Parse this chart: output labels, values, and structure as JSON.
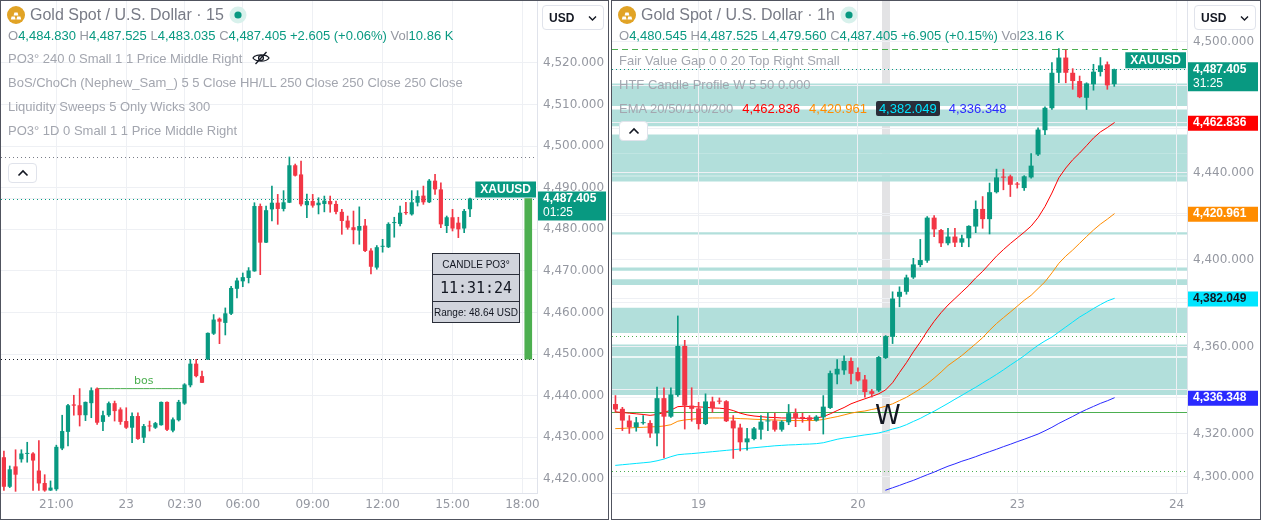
{
  "chart_data": [
    {
      "type": "candlestick",
      "title": "Gold Spot / U.S. Dollar · 15",
      "subtitle": "O4,484.830 H4,487.525 L4,483.035 C4,487.405 +2.605 (+0.06%) Vol10.86 K",
      "categories": [
        null,
        null,
        null,
        null,
        null,
        null,
        null,
        null,
        null,
        "21:00",
        null,
        null,
        null,
        null,
        null,
        null,
        null,
        null,
        null,
        null,
        null,
        "23",
        null,
        null,
        null,
        null,
        null,
        null,
        null,
        null,
        null,
        "02:30",
        null,
        null,
        null,
        null,
        null,
        null,
        null,
        null,
        null,
        "06:00",
        null,
        null,
        null,
        null,
        null,
        null,
        null,
        null,
        null,
        null,
        null,
        "09:00",
        null,
        null,
        null,
        null,
        null,
        null,
        null,
        null,
        null,
        null,
        null,
        "12:00",
        null,
        null,
        null,
        null,
        null,
        null,
        null,
        null,
        null,
        null,
        null,
        "15:00",
        null,
        null,
        null,
        null,
        null,
        null,
        null,
        null,
        null,
        null,
        null,
        "18:00",
        null,
        null
      ],
      "ohlc": [
        [
          4425.2,
          4426.7,
          4417.2,
          4418.1
        ],
        [
          4418.1,
          4423.1,
          4417.9,
          4422.3
        ],
        [
          4423,
          4427,
          4417,
          4421
        ],
        [
          4424.7,
          4427,
          4424,
          4426.1
        ],
        [
          4426,
          4428.8,
          4424,
          4426.2
        ],
        [
          4426.1,
          4426.3,
          4417.2,
          4424.4
        ],
        [
          4422,
          4429.2,
          4417.2,
          4418.9
        ],
        [
          4419,
          4421,
          4417,
          4417.2
        ],
        [
          4417.2,
          4419.5,
          4417.2,
          4417.9
        ],
        [
          4417.5,
          4428.1,
          4417.2,
          4427.7
        ],
        [
          4427.3,
          4435.3,
          4427,
          4431.5
        ],
        [
          4431.3,
          4437.9,
          4427.9,
          4437.7
        ],
        [
          4437.9,
          4440.1,
          4435.3,
          4437.6
        ],
        [
          4437.7,
          4441.7,
          4432.7,
          4435.3
        ],
        [
          4435.3,
          4438.5,
          4434,
          4438.5
        ],
        [
          4438.2,
          4441.9,
          4434.7,
          4441.3
        ],
        [
          4441.7,
          4441.9,
          4433.1,
          4433.5
        ],
        [
          4433.7,
          4436.3,
          4431.6,
          4435.3
        ],
        [
          4435.3,
          4438.5,
          4435,
          4438.2
        ],
        [
          4438.2,
          4438.7,
          4433.9,
          4436.3
        ],
        [
          4436.7,
          4437.1,
          4433.1,
          4433.7
        ],
        [
          4433.9,
          4437.1,
          4432.1,
          4432.3
        ],
        [
          4432.3,
          4435.9,
          4428.7,
          4435.1
        ],
        [
          4435.1,
          4435.9,
          4429.5,
          4429.6
        ],
        [
          4429.9,
          4433.1,
          4428.7,
          4432.7
        ],
        [
          4432.8,
          4433.9,
          4431.5,
          4432.6
        ],
        [
          4432.3,
          4433.6,
          4432.1,
          4433.4
        ],
        [
          4432.9,
          4438.5,
          4432.9,
          4438.5
        ],
        [
          4438.5,
          4438.5,
          4431.6,
          4431.8
        ],
        [
          4431.6,
          4434.7,
          4431.3,
          4434.3
        ],
        [
          4434.1,
          4438.9,
          4433.9,
          4438.5
        ],
        [
          4438.1,
          4442.9,
          4437.9,
          4442.7
        ],
        [
          4442.5,
          4448.7,
          4442.1,
          4447.7
        ],
        [
          4447.7,
          4448.7,
          4444.5,
          4444.7
        ],
        [
          4444.7,
          4445.9,
          4443.1,
          4443.1
        ],
        [
          4448.7,
          4455.1,
          4448.7,
          4455.1
        ],
        [
          4454.9,
          4459.5,
          4454.7,
          4458.3
        ],
        [
          4458.5,
          4458.7,
          4452.5,
          4457.8
        ],
        [
          4457.5,
          4461.1,
          4454.6,
          4459.8
        ],
        [
          4459.7,
          4466.3,
          4459.5,
          4465.9
        ],
        [
          4465.7,
          4468.3,
          4463.5,
          4467.7
        ],
        [
          4467.5,
          4469.5,
          4466.2,
          4468.5
        ],
        [
          4468.3,
          4470.8,
          4467.1,
          4470.1
        ],
        [
          4469.9,
          4486.4,
          4469.9,
          4485.6
        ],
        [
          4485.6,
          4486.1,
          4469.1,
          4476.8
        ],
        [
          4476.8,
          4485.6,
          4476.8,
          4484.6
        ],
        [
          4484.8,
          4490.4,
          4482,
          4486.4
        ],
        [
          4486.4,
          4488.4,
          4481.2,
          4484.9
        ],
        [
          4484.9,
          4489.3,
          4484.4,
          4486.5
        ],
        [
          4486.4,
          4497.4,
          4486.4,
          4495.4
        ],
        [
          4495.4,
          4495.7,
          4492.8,
          4492.9
        ],
        [
          4493.2,
          4496.4,
          4485.6,
          4486
        ],
        [
          4485.8,
          4488.5,
          4482.8,
          4486.8
        ],
        [
          4486.8,
          4488.4,
          4485.3,
          4485.7
        ],
        [
          4485.8,
          4487.6,
          4483.7,
          4486.4
        ],
        [
          4486.1,
          4488,
          4484.2,
          4486.9
        ],
        [
          4486.8,
          4488,
          4484.1,
          4486
        ],
        [
          4486.1,
          4486.8,
          4483.7,
          4484.2
        ],
        [
          4484.2,
          4484.8,
          4478.8,
          4482
        ],
        [
          4482.1,
          4483.2,
          4480,
          4480.4
        ],
        [
          4480.5,
          4484.4,
          4476.5,
          4479.8
        ],
        [
          4479.7,
          4485.4,
          4476.4,
          4480.8
        ],
        [
          4480.9,
          4482.4,
          4474.6,
          4474.8
        ],
        [
          4474.9,
          4475.4,
          4469.3,
          4471
        ],
        [
          4470.8,
          4476.1,
          4470.4,
          4475.7
        ],
        [
          4475.8,
          4477.6,
          4474.5,
          4476
        ],
        [
          4475.7,
          4481.6,
          4475.6,
          4481.3
        ],
        [
          4481.5,
          4482.9,
          4478.1,
          4481.7
        ],
        [
          4481.3,
          4485.6,
          4480.8,
          4484
        ],
        [
          4484.1,
          4486.5,
          4483.6,
          4483.9
        ],
        [
          4483.6,
          4489.3,
          4483.4,
          4486.5
        ],
        [
          4486.4,
          4489.3,
          4485.6,
          4488
        ],
        [
          4488.1,
          4490.4,
          4486,
          4486.5
        ],
        [
          4486.5,
          4492,
          4486.4,
          4491.7
        ],
        [
          4491.7,
          4493.2,
          4488.4,
          4489.6
        ],
        [
          4489.6,
          4491.2,
          4480.4,
          4481.2
        ],
        [
          4480.8,
          4483.2,
          4479.2,
          4482.9
        ],
        [
          4482.9,
          4484.8,
          4479.6,
          4480.2
        ],
        [
          4481.6,
          4482.9,
          4478,
          4480
        ],
        [
          4480.2,
          4484.8,
          4479.2,
          4484.4
        ],
        [
          4484.83,
          4487.525,
          4483.035,
          4487.405
        ],
        null,
        null,
        null,
        null,
        null,
        null,
        null,
        null,
        null,
        null,
        null
      ],
      "colors": [
        "#f23645",
        "#089981",
        "#f23645",
        "#089981",
        "#089981",
        "#f23645",
        "#f23645",
        "#f23645",
        "#089981",
        "#089981",
        "#089981",
        "#089981",
        "#f23645",
        "#f23645",
        "#089981",
        "#089981",
        "#f23645",
        "#089981",
        "#089981",
        "#f23645",
        "#f23645",
        "#f23645",
        "#089981",
        "#f23645",
        "#089981",
        "#f23645",
        "#089981",
        "#089981",
        "#f23645",
        "#089981",
        "#089981",
        "#089981",
        "#089981",
        "#f23645",
        "#f23645",
        "#089981",
        "#089981",
        "#f23645",
        "#089981",
        "#089981",
        "#089981",
        "#089981",
        "#089981",
        "#089981",
        "#f23645",
        "#089981",
        "#089981",
        "#f23645",
        "#089981",
        "#089981",
        "#f23645",
        "#f23645",
        "#089981",
        "#f23645",
        "#089981",
        "#089981",
        "#f23645",
        "#f23645",
        "#f23645",
        "#f23645",
        "#f23645",
        "#089981",
        "#f23645",
        "#f23645",
        "#089981",
        "#089981",
        "#089981",
        "#089981",
        "#089981",
        "#f23645",
        "#089981",
        "#089981",
        "#f23645",
        "#089981",
        "#f23645",
        "#f23645",
        "#089981",
        "#f23645",
        "#f23645",
        "#089981",
        "#089981",
        null,
        null,
        null,
        null,
        null,
        null,
        null,
        null,
        null,
        null,
        null
      ],
      "series": [
        {
          "type": "line",
          "name": "bos",
          "color": "#4caf50",
          "values": [
            null,
            null,
            null,
            null,
            null,
            null,
            null,
            null,
            null,
            null,
            null,
            null,
            null,
            null,
            null,
            null,
            4441.7,
            4441.7,
            4441.7,
            4441.7,
            4441.7,
            4441.7,
            4441.7,
            4441.7,
            4441.7,
            4441.7,
            4441.7,
            4441.7,
            4441.7,
            4441.7,
            4441.7,
            4441.7,
            null,
            null,
            null,
            null,
            null,
            null,
            null,
            null,
            null,
            null,
            null,
            null,
            null,
            null,
            null,
            null,
            null,
            null,
            null,
            null,
            null,
            null,
            null,
            null,
            null,
            null,
            null,
            null,
            null,
            null,
            null,
            null,
            null,
            null,
            null,
            null,
            null,
            null,
            null,
            null,
            null,
            null,
            null,
            null,
            null,
            null,
            null,
            null,
            null,
            null,
            null,
            null,
            null,
            null,
            null,
            null,
            null,
            null,
            null,
            null
          ]
        },
        {
          "type": "bar",
          "color": "#4caf50",
          "values": [
            null,
            null,
            null,
            null,
            null,
            null,
            null,
            null,
            null,
            null,
            null,
            null,
            null,
            null,
            null,
            null,
            null,
            null,
            null,
            null,
            null,
            null,
            null,
            null,
            null,
            null,
            null,
            null,
            null,
            null,
            null,
            null,
            null,
            null,
            null,
            null,
            null,
            null,
            null,
            null,
            null,
            null,
            null,
            null,
            null,
            null,
            null,
            null,
            null,
            null,
            null,
            null,
            null,
            null,
            null,
            null,
            null,
            null,
            null,
            null,
            null,
            null,
            null,
            null,
            null,
            null,
            null,
            null,
            null,
            null,
            null,
            null,
            null,
            null,
            null,
            null,
            null,
            null,
            null,
            null,
            null,
            null,
            null,
            null,
            null,
            null,
            null,
            null,
            null,
            null,
            38.6,
            null
          ],
          "base": [
            null,
            null,
            null,
            null,
            null,
            null,
            null,
            null,
            null,
            null,
            null,
            null,
            null,
            null,
            null,
            null,
            null,
            null,
            null,
            null,
            null,
            null,
            null,
            null,
            null,
            null,
            null,
            null,
            null,
            null,
            null,
            null,
            null,
            null,
            null,
            null,
            null,
            null,
            null,
            null,
            null,
            null,
            null,
            null,
            null,
            null,
            null,
            null,
            null,
            null,
            null,
            null,
            null,
            null,
            null,
            null,
            null,
            null,
            null,
            null,
            null,
            null,
            null,
            null,
            null,
            null,
            null,
            null,
            null,
            null,
            null,
            null,
            null,
            null,
            null,
            null,
            null,
            null,
            null,
            null,
            null,
            null,
            null,
            null,
            null,
            null,
            null,
            null,
            null,
            null,
            4448.8,
            null
          ]
        }
      ],
      "ylim": [
        4416.6,
        4534.9
      ],
      "yticks": [
        {
          "value": 4420,
          "label": "4,420.000"
        },
        {
          "value": 4430,
          "label": "4,430.000"
        },
        {
          "value": 4440,
          "label": "4,440.000"
        },
        {
          "value": 4450,
          "label": "4,450.000"
        },
        {
          "value": 4460,
          "label": "4,460.000"
        },
        {
          "value": 4470,
          "label": "4,470.000"
        },
        {
          "value": 4480,
          "label": "4,480.000"
        },
        {
          "value": 4487.405,
          "label": "4,487.405"
        },
        {
          "value": 4490,
          "label": "4,490.000"
        },
        {
          "value": 4500,
          "label": "4,500.000"
        },
        {
          "value": 4510,
          "label": "4,510.000"
        },
        {
          "value": 4520,
          "label": "4,520.000"
        }
      ],
      "grid": true,
      "ref_lines": [
        {
          "axis": "y",
          "value": 4487.405,
          "color": "#089981",
          "line_style": "dotted"
        },
        {
          "axis": "y",
          "value": 4497.4,
          "color": "#787b86",
          "line_style": "dotted"
        },
        {
          "axis": "y",
          "value": 4448.8,
          "color": "#131722",
          "line_style": "dotted"
        }
      ],
      "annotations": [
        "PO3° 240 0 Small 1 1 Price Middle Right",
        "BoS/ChoCh (Nephew_Sam_) 5 5 Close HH/LL 250 Close 250 Close 250 Close",
        "Liquidity Sweeps 5 Only Wicks 300",
        "PO3° 1D 0 Small 1 1 Price Middle Right",
        "USD",
        "CANDLE PO3°",
        "11:31:24",
        "Range: 48.64 USD",
        "01:25",
        "XAUUSD"
      ]
    },
    {
      "type": "candlestick",
      "title": "Gold Spot / U.S. Dollar · 1h",
      "subtitle": "O4,480.545 H4,487.525 L4,479.560 C4,487.405 +6.905 (+0.15%) Vol23.16 K",
      "categories": [
        null,
        null,
        null,
        null,
        null,
        null,
        null,
        null,
        null,
        null,
        null,
        null,
        "19",
        null,
        null,
        null,
        null,
        null,
        null,
        null,
        null,
        null,
        null,
        null,
        null,
        null,
        null,
        null,
        null,
        null,
        null,
        null,
        null,
        null,
        null,
        "20",
        null,
        null,
        null,
        null,
        null,
        null,
        null,
        null,
        null,
        null,
        null,
        null,
        null,
        null,
        null,
        null,
        null,
        null,
        null,
        null,
        null,
        null,
        "23",
        null,
        null,
        null,
        null,
        null,
        null,
        null,
        null,
        null,
        null,
        null,
        null,
        null,
        null,
        null,
        null,
        null,
        null,
        null,
        null,
        null,
        null,
        "24",
        null
      ],
      "ohlc": [
        [
          4333.5,
          4337.4,
          4329.7,
          4331
        ],
        [
          4331.3,
          4332,
          4321.3,
          4325.9
        ],
        [
          4325.9,
          4328.2,
          4320,
          4322.8
        ],
        [
          4322.8,
          4327.4,
          4321,
          4325.1
        ],
        [
          4324.7,
          4328.2,
          4324.2,
          4324.9
        ],
        [
          4324.8,
          4325.9,
          4318.2,
          4320
        ],
        [
          4320,
          4341.3,
          4314.3,
          4336.2
        ],
        [
          4336.2,
          4341,
          4308.7,
          4327.7
        ],
        [
          4327.7,
          4341,
          4327.4,
          4337.9
        ],
        [
          4337.6,
          4374,
          4337,
          4360.2
        ],
        [
          4360.2,
          4362.8,
          4322,
          4332.8
        ],
        [
          4332.8,
          4341,
          4325.6,
          4331.3
        ],
        [
          4331.5,
          4334.3,
          4322,
          4324.3
        ],
        [
          4324.3,
          4338.2,
          4324,
          4334.7
        ],
        [
          4334.7,
          4336.7,
          4329.7,
          4331.6
        ],
        [
          4334.9,
          4336.3,
          4333.6,
          4334.6
        ],
        [
          4334.8,
          4335.1,
          4325.4,
          4325.6
        ],
        [
          4325.9,
          4328.2,
          4308.5,
          4322.3
        ],
        [
          4322.7,
          4324.3,
          4312,
          4315.9
        ],
        [
          4315.9,
          4322.3,
          4312.3,
          4317.7
        ],
        [
          4317.4,
          4322.8,
          4317,
          4322.3
        ],
        [
          4321.7,
          4328.2,
          4317.4,
          4325.4
        ],
        [
          4325.5,
          4329.4,
          4321.3,
          4325.7
        ],
        [
          4325.9,
          4329.3,
          4321,
          4321.7
        ],
        [
          4321.7,
          4325.9,
          4321,
          4325.4
        ],
        [
          4325.1,
          4333.3,
          4324,
          4329.3
        ],
        [
          4329.3,
          4331.3,
          4323.1,
          4327.1
        ],
        [
          4327.3,
          4329.3,
          4325.1,
          4327.1
        ],
        [
          4327.4,
          4328.2,
          4321.3,
          4326.2
        ],
        [
          4325.9,
          4328.2,
          4325.6,
          4327.7
        ],
        [
          4327.4,
          4337.4,
          4319.7,
          4332.3
        ],
        [
          4331.7,
          4348.7,
          4331.4,
          4347.7
        ],
        [
          4347.1,
          4353.9,
          4342.8,
          4349.7
        ],
        [
          4349,
          4355.7,
          4347.1,
          4353.3
        ],
        [
          4353.3,
          4354.8,
          4342.8,
          4347.4
        ],
        [
          4348.2,
          4350.2,
          4344,
          4344.3
        ],
        [
          4344.8,
          4346.7,
          4336.7,
          4339
        ],
        [
          4339.4,
          4340.2,
          4336.7,
          4338.2
        ],
        [
          4339.7,
          4355.4,
          4339.2,
          4355.1
        ],
        [
          4354.7,
          4365,
          4354.4,
          4364.7
        ],
        [
          4364.4,
          4385.1,
          4361.3,
          4382
        ],
        [
          4382.8,
          4387.4,
          4378.2,
          4385.1
        ],
        [
          4385.1,
          4392.8,
          4384,
          4391.7
        ],
        [
          4391.7,
          4400.5,
          4391.2,
          4397.7
        ],
        [
          4397.4,
          4409.2,
          4396.6,
          4399.7
        ],
        [
          4399.4,
          4419.7,
          4398.6,
          4419.2
        ],
        [
          4419.2,
          4420.2,
          4410.5,
          4413.8
        ],
        [
          4413.5,
          4413.8,
          4405.8,
          4407.4
        ],
        [
          4407.4,
          4414.3,
          4406.6,
          4410.5
        ],
        [
          4410.5,
          4414.3,
          4405.8,
          4407.7
        ],
        [
          4407.7,
          4411.2,
          4405.8,
          4409.7
        ],
        [
          4409.7,
          4415.5,
          4405.8,
          4415.4
        ],
        [
          4415.1,
          4426.9,
          4412.3,
          4423.2
        ],
        [
          4423.2,
          4428.9,
          4414.3,
          4418.5
        ],
        [
          4418.5,
          4435.1,
          4411.7,
          4430.9
        ],
        [
          4430.9,
          4441.5,
          4430.5,
          4437.7
        ],
        [
          4438,
          4441.5,
          4432,
          4437.6
        ],
        [
          4438.2,
          4438.8,
          4428.9,
          4434.3
        ],
        [
          4434.8,
          4435.4,
          4432.8,
          4434.4
        ],
        [
          4432.8,
          4438.5,
          4431.7,
          4438.2
        ],
        [
          4437.7,
          4448.6,
          4437.4,
          4443.1
        ],
        [
          4448.2,
          4460.5,
          4447.7,
          4459.7
        ],
        [
          4459.4,
          4470.2,
          4457.4,
          4469.7
        ],
        [
          4469.5,
          4490.5,
          4468.9,
          4485.8
        ],
        [
          4485.8,
          4496.9,
          4481.2,
          4492.8
        ],
        [
          4492.8,
          4496.3,
          4481.2,
          4485.8
        ],
        [
          4485.8,
          4487.7,
          4478.2,
          4482
        ],
        [
          4482,
          4484.3,
          4474.3,
          4474.6
        ],
        [
          4474.3,
          4481.2,
          4468.9,
          4480.9
        ],
        [
          4480.5,
          4489.7,
          4477.8,
          4486.3
        ],
        [
          4486.2,
          4492.8,
          4484.3,
          4489.2
        ],
        [
          4489.7,
          4490.8,
          4478.2,
          4480
        ],
        [
          4480.545,
          4487.525,
          4479.56,
          4487.405
        ],
        null,
        null,
        null,
        null,
        null,
        null,
        null,
        null,
        null,
        null
      ],
      "colors": [
        "#f23645",
        "#f23645",
        "#f23645",
        "#089981",
        "#089981",
        "#f23645",
        "#089981",
        "#f23645",
        "#089981",
        "#089981",
        "#f23645",
        "#f23645",
        "#f23645",
        "#089981",
        "#f23645",
        "#f23645",
        "#f23645",
        "#f23645",
        "#f23645",
        "#089981",
        "#089981",
        "#089981",
        "#089981",
        "#f23645",
        "#089981",
        "#089981",
        "#f23645",
        "#f23645",
        "#f23645",
        "#089981",
        "#089981",
        "#089981",
        "#089981",
        "#089981",
        "#f23645",
        "#f23645",
        "#f23645",
        "#f23645",
        "#089981",
        "#089981",
        "#089981",
        "#089981",
        "#089981",
        "#089981",
        "#089981",
        "#089981",
        "#f23645",
        "#f23645",
        "#089981",
        "#f23645",
        "#089981",
        "#089981",
        "#089981",
        "#f23645",
        "#089981",
        "#089981",
        "#f23645",
        "#f23645",
        "#f23645",
        "#089981",
        "#089981",
        "#089981",
        "#089981",
        "#089981",
        "#089981",
        "#f23645",
        "#f23645",
        "#f23645",
        "#089981",
        "#089981",
        "#089981",
        "#f23645",
        "#089981",
        null,
        null,
        null,
        null,
        null,
        null,
        null,
        null,
        null,
        null
      ],
      "legend": "top left",
      "legend_title": "EMA 20/50/100/200",
      "series": [
        {
          "type": "line",
          "name": "4,462.836",
          "color": "#ff0000",
          "values": [
            4329.9,
            4329.6,
            4329.3,
            4329.0,
            4328.7,
            4328.3,
            4328.7,
            4329.6,
            4330.7,
            4332.3,
            4332.5,
            4332.3,
            4332.2,
            4332.0,
            4331.7,
            4331.6,
            4331.3,
            4330.5,
            4329.3,
            4328.5,
            4328.0,
            4327.7,
            4327.4,
            4327.3,
            4327.1,
            4327.1,
            4327.1,
            4326.9,
            4326.9,
            4327.1,
            4327.7,
            4329.0,
            4330.5,
            4331.9,
            4333.6,
            4334.8,
            4335.9,
            4337.0,
            4338.2,
            4340.0,
            4343.3,
            4348.0,
            4352.5,
            4357.5,
            4362.0,
            4367.0,
            4371.5,
            4375.5,
            4379.0,
            4382.0,
            4385.0,
            4388.0,
            4391.5,
            4394.5,
            4398.0,
            4401.5,
            4404.5,
            4407.3,
            4409.9,
            4412.5,
            4415.3,
            4419.2,
            4424.3,
            4430.5,
            4437.5,
            4442.0,
            4445.8,
            4448.9,
            4452.3,
            4455.8,
            4458.6,
            4460.6,
            4462.836,
            null,
            null,
            null,
            null,
            null,
            null,
            null,
            null,
            null,
            null
          ]
        },
        {
          "type": "line",
          "name": "4,420.961",
          "color": "#ff8c00",
          "values": [
            4322.2,
            4322.3,
            4322.5,
            4322.7,
            4322.8,
            4323.0,
            4323.1,
            4323.4,
            4324.0,
            4325.6,
            4326.2,
            4326.5,
            4326.8,
            4327.0,
            4327.1,
            4327.1,
            4327.1,
            4327.0,
            4326.8,
            4326.7,
            4326.5,
            4326.4,
            4326.2,
            4326.2,
            4326.0,
            4326.0,
            4325.9,
            4325.9,
            4325.9,
            4326.0,
            4326.4,
            4327.1,
            4327.7,
            4328.5,
            4329.3,
            4329.9,
            4330.3,
            4331.0,
            4331.6,
            4332.5,
            4333.6,
            4335.1,
            4336.6,
            4338.5,
            4340.5,
            4342.8,
            4345.4,
            4348.2,
            4351.2,
            4353.5,
            4355.8,
            4358.5,
            4361.2,
            4364.0,
            4367.4,
            4370.5,
            4373.2,
            4375.8,
            4378.5,
            4381.2,
            4383.5,
            4386.6,
            4389.7,
            4393.8,
            4398.2,
            4401.5,
            4404.3,
            4407.4,
            4410.5,
            4413.5,
            4416.2,
            4418.5,
            4420.961,
            null,
            null,
            null,
            null,
            null,
            null,
            null,
            null,
            null,
            null
          ]
        },
        {
          "type": "line",
          "name": "4,382.049",
          "color": "#00e5ff",
          "values": [
            4305.3,
            4305.6,
            4305.9,
            4306.2,
            4306.5,
            4306.8,
            4307.4,
            4308.2,
            4309.3,
            4310.2,
            4310.5,
            4310.7,
            4311.0,
            4311.3,
            4311.6,
            4311.9,
            4312.2,
            4312.5,
            4312.8,
            4313.1,
            4313.4,
            4313.7,
            4314.0,
            4314.3,
            4314.5,
            4314.7,
            4314.8,
            4315.0,
            4315.1,
            4315.3,
            4315.7,
            4316.5,
            4317.3,
            4317.9,
            4318.3,
            4318.8,
            4319.3,
            4319.7,
            4320.2,
            4321.0,
            4322.0,
            4322.8,
            4324.0,
            4325.5,
            4326.9,
            4328.6,
            4330.2,
            4332.0,
            4333.8,
            4335.7,
            4337.5,
            4339.4,
            4341.2,
            4343.2,
            4345.1,
            4347.1,
            4349.2,
            4351.4,
            4353.5,
            4355.7,
            4358.2,
            4360.5,
            4362.5,
            4364.3,
            4366.6,
            4368.9,
            4371.2,
            4373.5,
            4375.4,
            4377.4,
            4379.2,
            4380.9,
            4382.049,
            null,
            null,
            null,
            null,
            null,
            null,
            null,
            null,
            null,
            null
          ]
        },
        {
          "type": "line",
          "name": "4,336.348",
          "color": "#2a2aff",
          "values": [
            null,
            null,
            null,
            null,
            null,
            null,
            null,
            null,
            null,
            null,
            null,
            null,
            null,
            null,
            null,
            null,
            null,
            null,
            null,
            null,
            null,
            null,
            null,
            null,
            null,
            null,
            null,
            null,
            null,
            null,
            null,
            null,
            null,
            null,
            null,
            null,
            null,
            null,
            null,
            4293.9,
            4295.0,
            4296.1,
            4297.3,
            4298.4,
            4299.7,
            4301.0,
            4302.2,
            4303.6,
            4304.9,
            4306.0,
            4307.2,
            4308.2,
            4309.3,
            4310.5,
            4311.6,
            4312.7,
            4313.9,
            4315.0,
            4316.2,
            4317.3,
            4318.5,
            4319.7,
            4321.2,
            4322.8,
            4324.6,
            4326.2,
            4327.8,
            4329.5,
            4331.0,
            4332.4,
            4333.8,
            4335.0,
            4336.348,
            null,
            null,
            null,
            null,
            null,
            null,
            null,
            null,
            null,
            null
          ]
        }
      ],
      "ylim": [
        4292.6,
        4518.8
      ],
      "yticks": [
        {
          "value": 4300,
          "label": "4,300.000"
        },
        {
          "value": 4320,
          "label": "4,320.000"
        },
        {
          "value": 4336.348,
          "label": "4,336.348"
        },
        {
          "value": 4340,
          "label": null
        },
        {
          "value": 4360,
          "label": "4,360.000"
        },
        {
          "value": 4380,
          "label": null
        },
        {
          "value": 4382.049,
          "label": "4,382.049"
        },
        {
          "value": 4400,
          "label": "4,400.000"
        },
        {
          "value": 4420,
          "label": null
        },
        {
          "value": 4420.961,
          "label": "4,420.961"
        },
        {
          "value": 4440,
          "label": "4,440.000"
        },
        {
          "value": 4460,
          "label": null
        },
        {
          "value": 4462.836,
          "label": "4,462.836"
        },
        {
          "value": 4480,
          "label": null
        },
        {
          "value": 4487.405,
          "label": "4,487.405"
        },
        {
          "value": 4500,
          "label": "4,500.000"
        }
      ],
      "grid": true,
      "bands": [
        {
          "axis": "y",
          "from": 4470.5,
          "to": 4480.9,
          "color": "#b2dfdb"
        },
        {
          "axis": "y",
          "from": 4461.2,
          "to": 4468.9,
          "color": "#b2dfdb"
        },
        {
          "axis": "y",
          "from": 4448.6,
          "to": 4457.4,
          "color": "#b2dfdb"
        },
        {
          "axis": "y",
          "from": 4438.5,
          "to": 4448.6,
          "color": "#b2dfdb"
        },
        {
          "axis": "y",
          "from": 4435.8,
          "to": 4438.2,
          "color": "#b2dfdb"
        },
        {
          "axis": "y",
          "from": 4411.4,
          "to": 4412.5,
          "color": "#b2dfdb"
        },
        {
          "axis": "y",
          "from": 4394.8,
          "to": 4396.3,
          "color": "#b2dfdb"
        },
        {
          "axis": "y",
          "from": 4388.2,
          "to": 4390.9,
          "color": "#b2dfdb"
        },
        {
          "axis": "y",
          "from": 4366.2,
          "to": 4377.8,
          "color": "#b2dfdb"
        },
        {
          "axis": "y",
          "from": 4355.5,
          "to": 4360.9,
          "color": "#b2dfdb"
        },
        {
          "axis": "y",
          "from": 4339.7,
          "to": 4354.8,
          "color": "#b2dfdb"
        },
        {
          "axis": "y",
          "from": 4337.7,
          "to": 4341.5,
          "color": "#b2dfdb"
        }
      ],
      "ref_lines": [
        {
          "axis": "y",
          "value": 4487.405,
          "color": "#089981",
          "line_style": "dotted"
        },
        {
          "axis": "y",
          "value": 4496.9,
          "color": "#4caf50",
          "line_style": "dashed"
        },
        {
          "axis": "y",
          "value": 4364.6,
          "color": "#4caf50",
          "line_style": "dotted"
        },
        {
          "axis": "y",
          "value": 4302.5,
          "color": "#4caf50",
          "line_style": "dotted"
        },
        {
          "axis": "y",
          "value": 4329.7,
          "color": "#4caf50",
          "line_style": "solid"
        }
      ],
      "annotations": [
        "Fair Value Gap 0 0 20 Top Right Small",
        "HTF Candle Profile W 5 50 0.000",
        "USD",
        "W",
        "31:25",
        "XAUUSD"
      ]
    }
  ]
}
